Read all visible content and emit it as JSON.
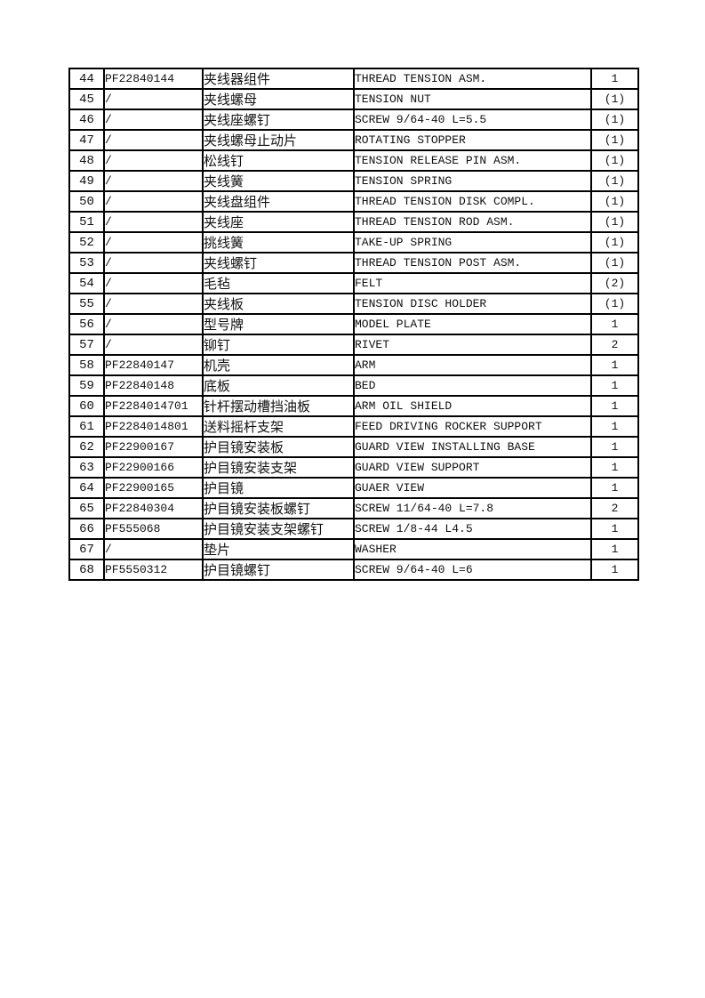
{
  "document": {
    "background": "#ffffff",
    "border_color": "#000000",
    "text_color": "#111111"
  },
  "table": {
    "rows": [
      {
        "no": "44",
        "part": "PF22840144",
        "cn": "夹线器组件",
        "en": "THREAD TENSION ASM.",
        "qty": "1"
      },
      {
        "no": "45",
        "part": "/",
        "cn": "夹线螺母",
        "en": "TENSION NUT",
        "qty": "(1)"
      },
      {
        "no": "46",
        "part": "/",
        "cn": "夹线座螺钉",
        "en": "SCREW 9/64-40 L=5.5",
        "qty": "(1)"
      },
      {
        "no": "47",
        "part": "/",
        "cn": "夹线螺母止动片",
        "en": "ROTATING STOPPER",
        "qty": "(1)"
      },
      {
        "no": "48",
        "part": "/",
        "cn": "松线钉",
        "en": "TENSION RELEASE PIN ASM.",
        "qty": "(1)"
      },
      {
        "no": "49",
        "part": "/",
        "cn": "夹线簧",
        "en": "TENSION SPRING",
        "qty": "(1)"
      },
      {
        "no": "50",
        "part": "/",
        "cn": "夹线盘组件",
        "en": "THREAD TENSION DISK COMPL.",
        "qty": "(1)"
      },
      {
        "no": "51",
        "part": "/",
        "cn": "夹线座",
        "en": "THREAD TENSION ROD ASM.",
        "qty": "(1)"
      },
      {
        "no": "52",
        "part": "/",
        "cn": "挑线簧",
        "en": "TAKE-UP SPRING",
        "qty": "(1)"
      },
      {
        "no": "53",
        "part": "/",
        "cn": "夹线螺钉",
        "en": "THREAD TENSION POST ASM.",
        "qty": "(1)"
      },
      {
        "no": "54",
        "part": "/",
        "cn": "毛毡",
        "en": "FELT",
        "qty": "(2)"
      },
      {
        "no": "55",
        "part": "/",
        "cn": "夹线板",
        "en": "TENSION DISC HOLDER",
        "qty": "(1)"
      },
      {
        "no": "56",
        "part": "/",
        "cn": "型号牌",
        "en": "MODEL PLATE",
        "qty": "1"
      },
      {
        "no": "57",
        "part": "/",
        "cn": "铆钉",
        "en": "RIVET",
        "qty": "2"
      },
      {
        "no": "58",
        "part": "PF22840147",
        "cn": "机壳",
        "en": "ARM",
        "qty": "1"
      },
      {
        "no": "59",
        "part": "PF22840148",
        "cn": "底板",
        "en": "BED",
        "qty": "1"
      },
      {
        "no": "60",
        "part": "PF2284014701",
        "cn": "针杆摆动槽挡油板",
        "en": "ARM OIL SHIELD",
        "qty": "1"
      },
      {
        "no": "61",
        "part": "PF2284014801",
        "cn": "送料摇杆支架",
        "en": "FEED DRIVING ROCKER SUPPORT",
        "qty": "1"
      },
      {
        "no": "62",
        "part": "PF22900167",
        "cn": "护目镜安装板",
        "en": "GUARD VIEW INSTALLING BASE",
        "qty": "1"
      },
      {
        "no": "63",
        "part": "PF22900166",
        "cn": "护目镜安装支架",
        "en": "GUARD VIEW SUPPORT",
        "qty": "1"
      },
      {
        "no": "64",
        "part": "PF22900165",
        "cn": "护目镜",
        "en": "GUAER VIEW",
        "qty": "1"
      },
      {
        "no": "65",
        "part": "PF22840304",
        "cn": "护目镜安装板螺钉",
        "en": "SCREW 11/64-40 L=7.8",
        "qty": "2"
      },
      {
        "no": "66",
        "part": "PF555068",
        "cn": "护目镜安装支架螺钉",
        "en": "SCREW 1/8-44 L4.5",
        "qty": "1"
      },
      {
        "no": "67",
        "part": "/",
        "cn": "垫片",
        "en": "WASHER",
        "qty": "1"
      },
      {
        "no": "68",
        "part": "PF5550312",
        "cn": "护目镜螺钉",
        "en": "SCREW 9/64-40 L=6",
        "qty": "1"
      }
    ]
  }
}
